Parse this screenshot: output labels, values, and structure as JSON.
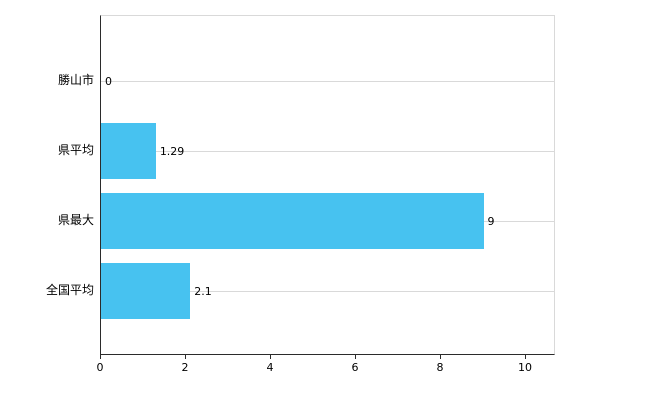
{
  "chart_data": {
    "type": "bar",
    "orientation": "horizontal",
    "title": "",
    "xlabel": "",
    "ylabel": "",
    "categories": [
      "勝山市",
      "県平均",
      "県最大",
      "全国平均"
    ],
    "values": [
      0,
      1.29,
      9,
      2.1
    ],
    "value_labels": [
      "0",
      "1.29",
      "9",
      "2.1"
    ],
    "xlim": [
      0,
      10
    ],
    "x_tick_values": [
      0,
      2,
      4,
      6,
      8,
      10
    ],
    "x_tick_labels": [
      "0",
      "2",
      "4",
      "6",
      "8",
      "10"
    ],
    "legend": false,
    "grid": "horizontal-lines-at-category-centers",
    "bar_color": "#47c2f0"
  },
  "colors": {
    "bar": "#47c2f0",
    "axis": "#2b2b2b",
    "grid": "#d9d9d9",
    "background": "#ffffff",
    "text": "#000000"
  }
}
